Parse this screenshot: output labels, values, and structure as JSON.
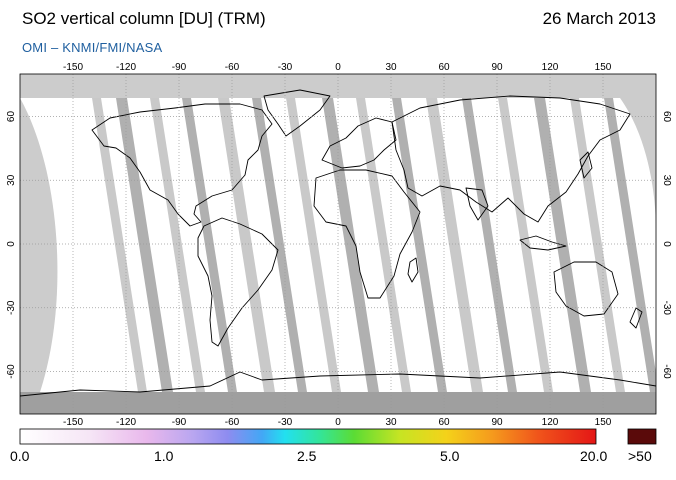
{
  "header": {
    "title": "SO2 vertical column [DU] (TRM)",
    "date": "26 March 2013",
    "subtitle": "OMI  –  KNMI/FMI/NASA"
  },
  "map": {
    "projection": "equirectangular",
    "lon_ticks": [
      "-150",
      "-120",
      "-90",
      "-60",
      "-30",
      "0",
      "30",
      "60",
      "90",
      "120",
      "150"
    ],
    "lat_ticks": [
      "60",
      "30",
      "0",
      "-30",
      "-60"
    ],
    "colors": {
      "ocean": "#ffffff",
      "no_data": "#c8c8c8",
      "orbit_gap": "#9a9a9a",
      "coastline": "#000000",
      "grid": "#9a9a9a"
    }
  },
  "colorbar": {
    "labels": [
      "0.0",
      "1.0",
      "2.5",
      "5.0",
      "20.0",
      ">50"
    ],
    "overflow_color": "#5a0a0a"
  }
}
